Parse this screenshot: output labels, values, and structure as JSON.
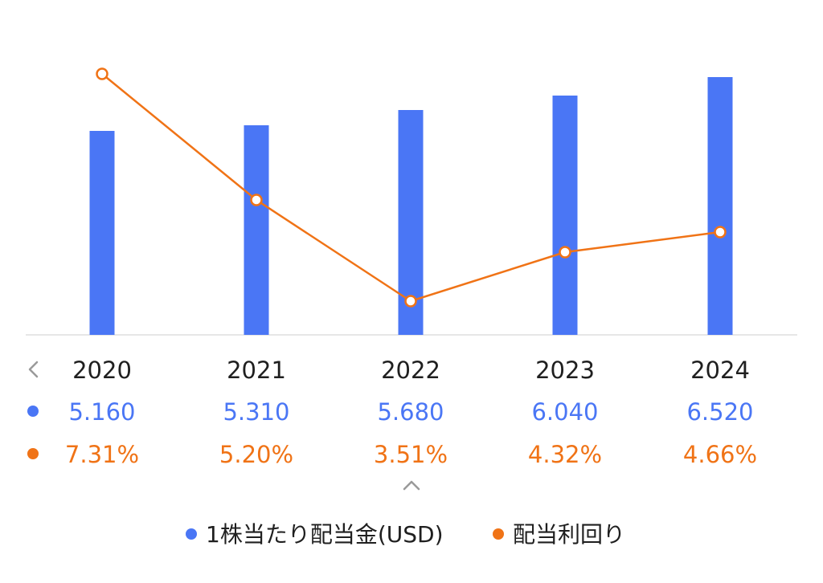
{
  "chart_data": {
    "type": "bar",
    "categories": [
      "2020",
      "2021",
      "2022",
      "2023",
      "2024"
    ],
    "series": [
      {
        "name": "1株当たり配当金(USD)",
        "type": "bar",
        "color": "#4a76f5",
        "values": [
          5.16,
          5.31,
          5.68,
          6.04,
          6.52
        ],
        "labels": [
          "5.160",
          "5.310",
          "5.680",
          "6.040",
          "6.520"
        ]
      },
      {
        "name": "配当利回り",
        "type": "line",
        "color": "#f07316",
        "values": [
          7.31,
          5.2,
          3.51,
          4.32,
          4.66
        ],
        "labels": [
          "7.31%",
          "5.20%",
          "3.51%",
          "4.32%",
          "4.66%"
        ]
      }
    ],
    "legend": "bottom-center",
    "grid": false
  },
  "ui": {
    "prev_icon": "chevron-left-icon",
    "expand_icon": "chevron-up-icon",
    "dps_marker_color": "#4a76f5",
    "yield_marker_color": "#f07316"
  }
}
